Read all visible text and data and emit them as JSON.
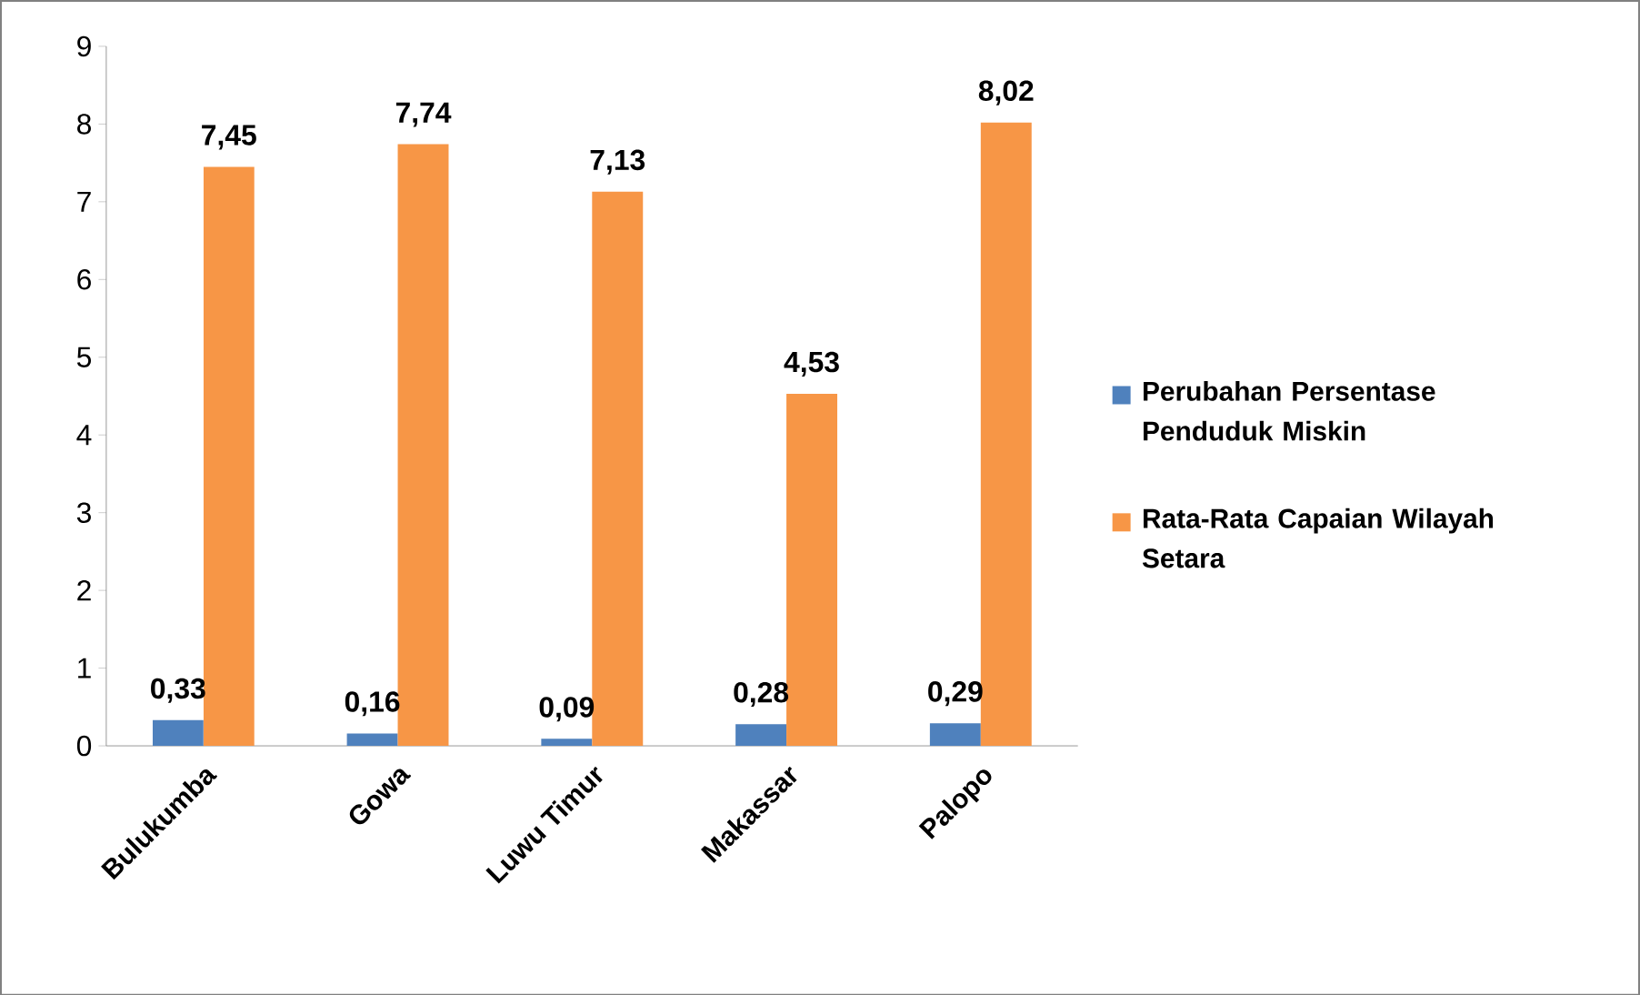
{
  "chart_data": {
    "type": "bar",
    "categories": [
      "Bulukumba",
      "Gowa",
      "Luwu Timur",
      "Makassar",
      "Palopo"
    ],
    "series": [
      {
        "name": "Perubahan Persentase Penduduk Miskin",
        "color": "#4f81bd",
        "values": [
          0.33,
          0.16,
          0.09,
          0.28,
          0.29
        ],
        "value_labels": [
          "0,33",
          "0,16",
          "0,09",
          "0,28",
          "0,29"
        ]
      },
      {
        "name": "Rata-Rata Capaian Wilayah Setara",
        "color": "#f79646",
        "values": [
          7.45,
          7.74,
          7.13,
          4.53,
          8.02
        ],
        "value_labels": [
          "7,45",
          "7,74",
          "7,13",
          "4,53",
          "8,02"
        ]
      }
    ],
    "ylim": [
      0,
      9
    ],
    "yticks": [
      0,
      1,
      2,
      3,
      4,
      5,
      6,
      7,
      8,
      9
    ],
    "legend": "right",
    "grid": false
  }
}
